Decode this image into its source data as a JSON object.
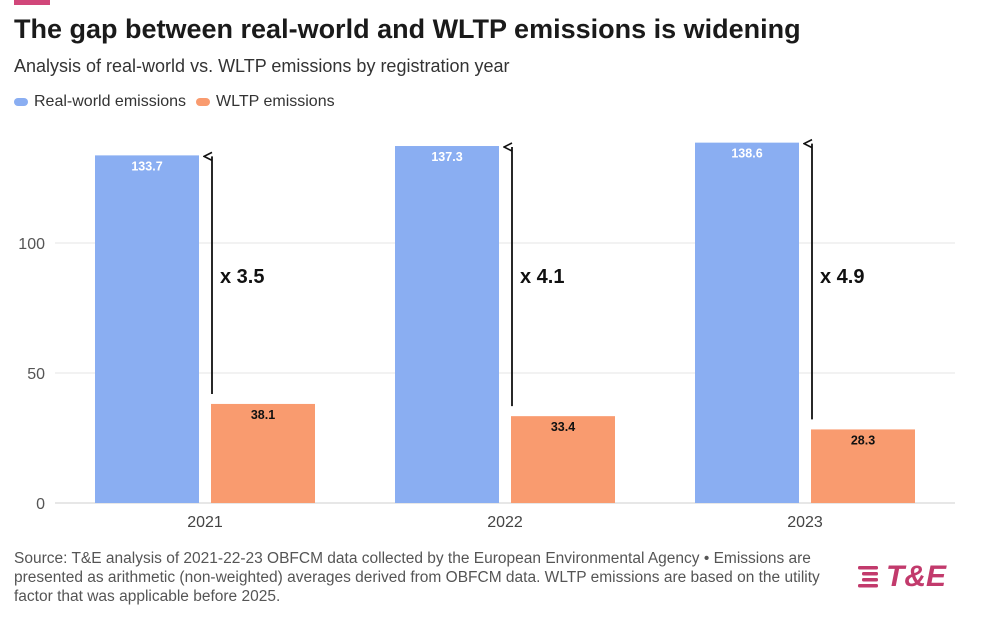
{
  "title": "The gap between real-world and WLTP emissions is widening",
  "subtitle": "Analysis of real-world vs. WLTP emissions by registration year",
  "colors": {
    "accent": "#d1477a",
    "real_world": "#8aaef2",
    "wltp": "#f99b6f",
    "logo": "#c23a6c"
  },
  "source_text": "Source: T&E analysis of 2021-22-23 OBFCM data collected by the European Environmental Agency • Emissions are presented as arithmetic (non-weighted) averages derived from OBFCM data. WLTP emissions are based on the utility factor that was applicable before 2025.",
  "logo": {
    "text": "T&E",
    "icon": "stripes-icon"
  },
  "chart_data": {
    "type": "bar",
    "categories": [
      "2021",
      "2022",
      "2023"
    ],
    "series": [
      {
        "name": "Real-world emissions",
        "values": [
          133.7,
          137.3,
          138.6
        ]
      },
      {
        "name": "WLTP emissions",
        "values": [
          38.1,
          33.4,
          28.3
        ]
      }
    ],
    "ratio_labels": [
      "x 3.5",
      "x 4.1",
      "x 4.9"
    ],
    "yticks": [
      0,
      50,
      100
    ],
    "ylim": [
      0,
      140
    ],
    "grid": true,
    "legend": "top-left"
  }
}
